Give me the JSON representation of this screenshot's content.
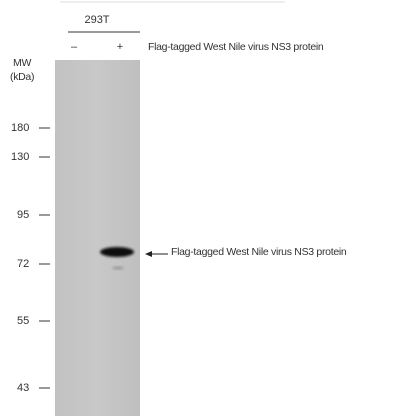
{
  "cell_line": "293T",
  "lanes": [
    "–",
    "+"
  ],
  "header_label": "Flag-tagged West Nile virus NS3 protein",
  "mw_label": [
    "MW",
    "(kDa)"
  ],
  "markers": [
    "180",
    "130",
    "95",
    "72",
    "55",
    "43"
  ],
  "band_label": "Flag-tagged West Nile virus NS3 protein"
}
